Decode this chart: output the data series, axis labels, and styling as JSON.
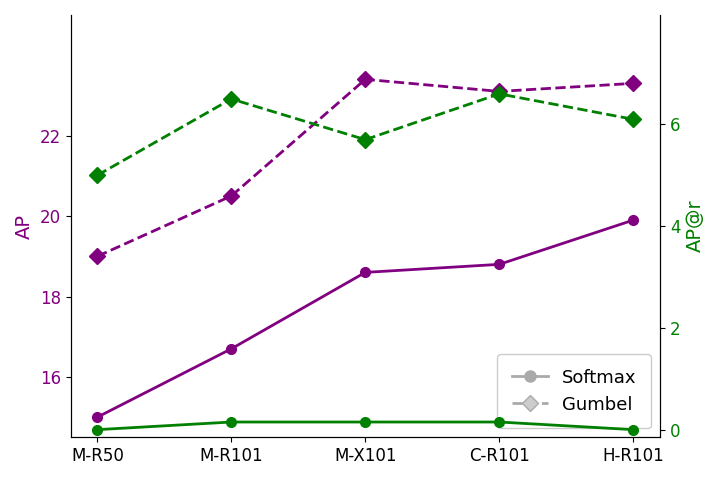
{
  "categories": [
    "M-R50",
    "M-R101",
    "M-X101",
    "C-R101",
    "H-R101"
  ],
  "ap_softmax": [
    15.0,
    16.7,
    18.6,
    18.8,
    19.9
  ],
  "ap_gumbel": [
    19.0,
    20.5,
    23.4,
    23.1,
    23.3
  ],
  "apr_softmax": [
    0.0,
    0.15,
    0.15,
    0.15,
    0.0
  ],
  "apr_gumbel": [
    5.0,
    6.5,
    5.7,
    6.6,
    6.1
  ],
  "color_purple": "#800080",
  "color_green": "#008000",
  "color_gray": "#aaaaaa",
  "ylabel_left": "AP",
  "ylabel_right": "AP@r",
  "ylim_left": [
    14.5,
    25.0
  ],
  "ylim_right": [
    -0.15,
    2.6
  ],
  "yticks_left": [
    16,
    18,
    20,
    22
  ],
  "yticks_right": [
    0,
    2,
    4,
    6
  ],
  "legend_softmax_label": "Softmax",
  "legend_gumbel_label": "Gumbel"
}
